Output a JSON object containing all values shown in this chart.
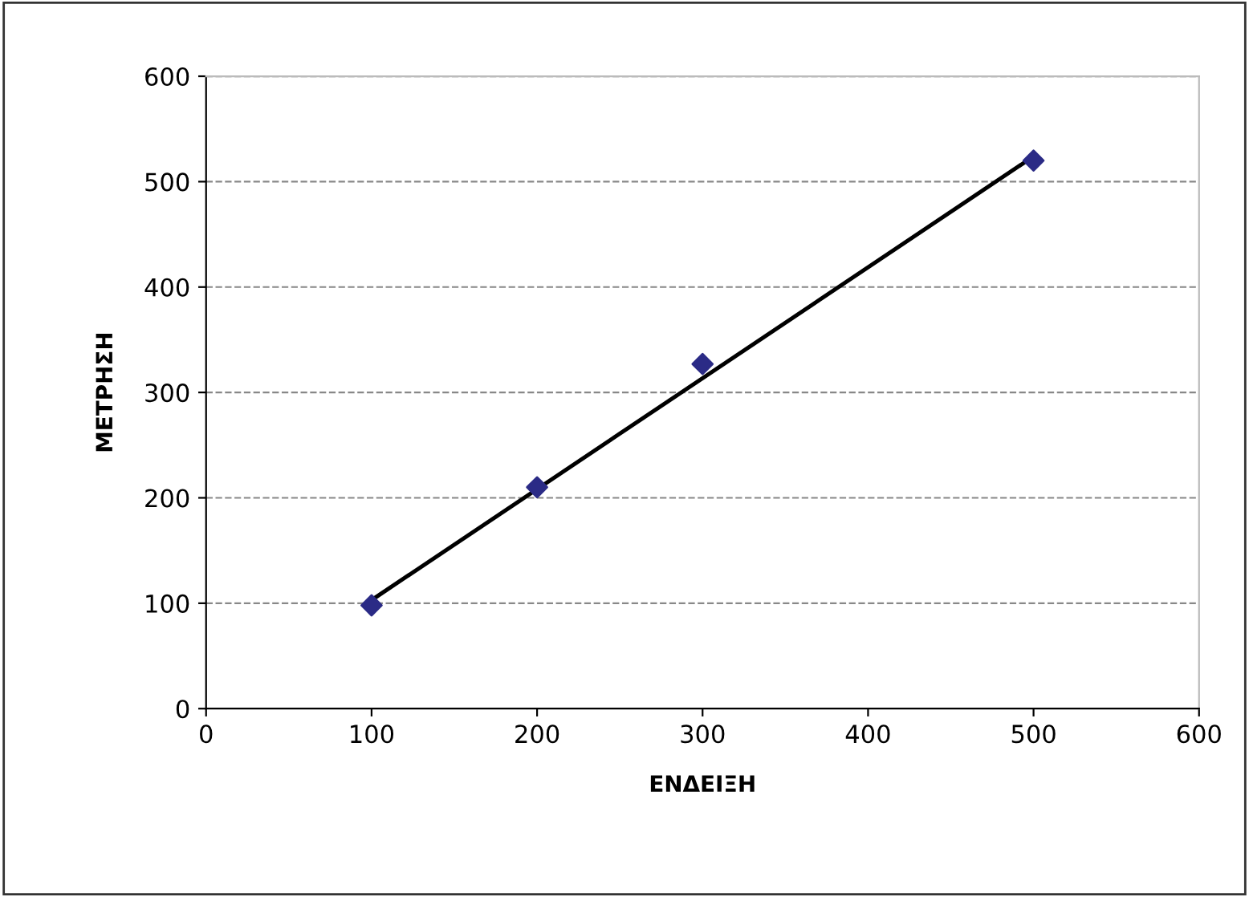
{
  "chart_data": {
    "type": "scatter",
    "xlabel": "ΕΝΔΕΙΞΗ",
    "ylabel": "ΜΕΤΡΗΣΗ",
    "series": [
      {
        "color": "#2b2b86",
        "marker": "diamond",
        "x": [
          100,
          200,
          300,
          500
        ],
        "values": [
          98,
          210,
          327,
          520
        ]
      },
      {
        "type": "line",
        "color": "#000000",
        "line_style": "solid",
        "x": [
          100,
          500
        ],
        "values": [
          103,
          524
        ]
      }
    ],
    "xlim": [
      0,
      600
    ],
    "xticks": [
      0,
      100,
      200,
      300,
      400,
      500,
      600
    ],
    "ylim": [
      0,
      600
    ],
    "yticks": [
      0,
      100,
      200,
      300,
      400,
      500,
      600
    ],
    "grid": "y",
    "legend": false
  }
}
